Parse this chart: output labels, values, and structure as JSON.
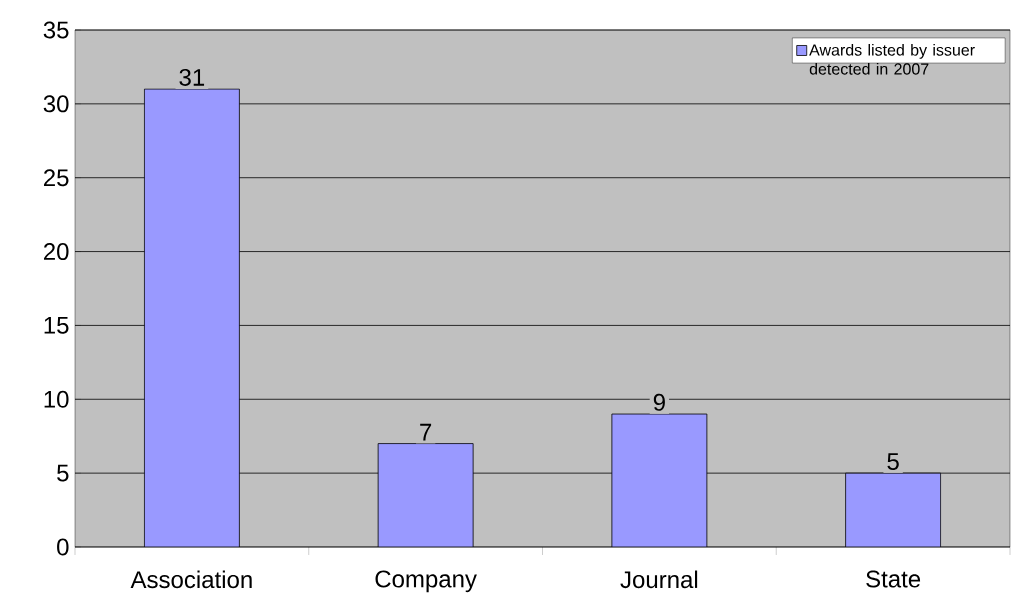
{
  "chart_data": {
    "type": "bar",
    "categories": [
      "Association",
      "Company",
      "Journal",
      "State"
    ],
    "series": [
      {
        "name": "Awards listed by issuer detected in 2007",
        "color": "#9999ff",
        "values": [
          31,
          7,
          9,
          5
        ]
      }
    ],
    "ylim": [
      0,
      35
    ],
    "yticks": [
      0,
      5,
      10,
      15,
      20,
      25,
      30,
      35
    ],
    "grid": "y",
    "legend": "top right",
    "data_labels": true
  }
}
